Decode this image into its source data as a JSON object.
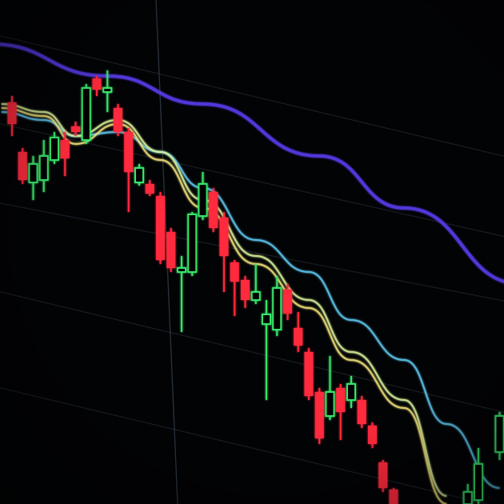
{
  "chart_data": {
    "type": "candlestick",
    "title": "",
    "xlabel": "",
    "ylabel": "",
    "ylim": [
      0,
      63
    ],
    "grid": true,
    "colors": {
      "up": "#39e36a",
      "down": "#ff2b3c",
      "background": "#020305",
      "grid": "#2a3440"
    },
    "candles": [
      {
        "i": 0,
        "o": 50.2,
        "h": 51.0,
        "l": 46.0,
        "c": 47.5
      },
      {
        "i": 1,
        "o": 44.0,
        "h": 44.5,
        "l": 40.0,
        "c": 40.5
      },
      {
        "i": 2,
        "o": 40.2,
        "h": 43.5,
        "l": 38.0,
        "c": 42.5
      },
      {
        "i": 3,
        "o": 40.5,
        "h": 45.5,
        "l": 39.0,
        "c": 43.5
      },
      {
        "i": 4,
        "o": 43.0,
        "h": 46.5,
        "l": 42.5,
        "c": 45.8
      },
      {
        "i": 5,
        "o": 45.5,
        "h": 46.5,
        "l": 41.0,
        "c": 43.2
      },
      {
        "i": 6,
        "o": 47.2,
        "h": 47.8,
        "l": 46.0,
        "c": 46.5
      },
      {
        "i": 7,
        "o": 45.5,
        "h": 52.5,
        "l": 45.0,
        "c": 52.0
      },
      {
        "i": 8,
        "o": 53.2,
        "h": 53.5,
        "l": 51.0,
        "c": 51.8
      },
      {
        "i": 9,
        "o": 51.5,
        "h": 54.2,
        "l": 49.0,
        "c": 52.0
      },
      {
        "i": 10,
        "o": 49.5,
        "h": 50.0,
        "l": 46.0,
        "c": 46.5
      },
      {
        "i": 11,
        "o": 46.5,
        "h": 47.0,
        "l": 36.5,
        "c": 41.5
      },
      {
        "i": 12,
        "o": 40.2,
        "h": 42.5,
        "l": 39.8,
        "c": 42.0
      },
      {
        "i": 13,
        "o": 40.0,
        "h": 40.5,
        "l": 38.5,
        "c": 38.8
      },
      {
        "i": 14,
        "o": 38.5,
        "h": 39.0,
        "l": 30.0,
        "c": 30.5
      },
      {
        "i": 15,
        "o": 34.0,
        "h": 34.5,
        "l": 29.0,
        "c": 29.5
      },
      {
        "i": 16,
        "o": 29.0,
        "h": 31.0,
        "l": 21.5,
        "c": 29.5
      },
      {
        "i": 17,
        "o": 29.0,
        "h": 36.5,
        "l": 28.5,
        "c": 36.2
      },
      {
        "i": 18,
        "o": 36.0,
        "h": 41.5,
        "l": 35.5,
        "c": 40.0
      },
      {
        "i": 19,
        "o": 39.0,
        "h": 39.5,
        "l": 34.0,
        "c": 34.5
      },
      {
        "i": 20,
        "o": 35.8,
        "h": 36.5,
        "l": 26.5,
        "c": 31.0
      },
      {
        "i": 21,
        "o": 30.2,
        "h": 30.5,
        "l": 23.5,
        "c": 27.8
      },
      {
        "i": 22,
        "o": 28.0,
        "h": 28.5,
        "l": 24.5,
        "c": 25.5
      },
      {
        "i": 23,
        "o": 25.5,
        "h": 30.0,
        "l": 25.0,
        "c": 26.5
      },
      {
        "i": 24,
        "o": 22.5,
        "h": 25.5,
        "l": 13.0,
        "c": 23.7
      },
      {
        "i": 25,
        "o": 21.8,
        "h": 28.5,
        "l": 21.0,
        "c": 27.0
      },
      {
        "i": 26,
        "o": 26.8,
        "h": 27.5,
        "l": 23.0,
        "c": 23.8
      },
      {
        "i": 27,
        "o": 22.0,
        "h": 24.0,
        "l": 19.0,
        "c": 19.8
      },
      {
        "i": 28,
        "o": 19.0,
        "h": 19.5,
        "l": 13.0,
        "c": 13.5
      },
      {
        "i": 29,
        "o": 14.0,
        "h": 14.5,
        "l": 7.5,
        "c": 8.2
      },
      {
        "i": 30,
        "o": 11.0,
        "h": 18.5,
        "l": 10.5,
        "c": 14.0
      },
      {
        "i": 31,
        "o": 14.5,
        "h": 15.0,
        "l": 8.0,
        "c": 11.5
      },
      {
        "i": 32,
        "o": 13.0,
        "h": 16.0,
        "l": 12.0,
        "c": 15.0
      },
      {
        "i": 33,
        "o": 13.0,
        "h": 13.5,
        "l": 9.5,
        "c": 10.0
      },
      {
        "i": 34,
        "o": 9.8,
        "h": 10.2,
        "l": 7.0,
        "c": 7.5
      },
      {
        "i": 35,
        "o": 5.2,
        "h": 5.5,
        "l": 1.5,
        "c": 2.0
      },
      {
        "i": 36,
        "o": 1.8,
        "h": 2.0,
        "l": 0.0,
        "c": 0.0
      },
      {
        "i": 43,
        "o": 0.0,
        "h": 2.5,
        "l": 0.0,
        "c": 1.5
      },
      {
        "i": 44,
        "o": 0.5,
        "h": 7.0,
        "l": 0.0,
        "c": 5.0
      },
      {
        "i": 46,
        "o": 6.5,
        "h": 11.5,
        "l": 5.5,
        "c": 11.0
      }
    ],
    "lines": [
      {
        "color": "#5a3cf0",
        "points": [
          [
            -2,
            57.5
          ],
          [
            9,
            53.5
          ],
          [
            18,
            50
          ],
          [
            29,
            43.5
          ],
          [
            37,
            37
          ],
          [
            48,
            27.5
          ]
        ]
      },
      {
        "color": "#5fc8f0",
        "points": [
          [
            -1,
            49
          ],
          [
            3,
            48
          ],
          [
            6,
            46
          ],
          [
            10,
            46.5
          ],
          [
            14,
            44
          ],
          [
            18,
            39.5
          ],
          [
            23,
            33
          ],
          [
            28,
            29
          ],
          [
            32,
            23
          ],
          [
            37,
            18
          ],
          [
            41,
            10
          ],
          [
            46,
            2
          ]
        ]
      },
      {
        "color": "#d9f29a",
        "points": [
          [
            -1,
            50
          ],
          [
            3,
            49
          ],
          [
            6,
            46
          ],
          [
            10,
            48
          ],
          [
            14,
            44
          ],
          [
            18,
            38
          ],
          [
            23,
            31
          ],
          [
            28,
            25.5
          ],
          [
            32,
            19
          ],
          [
            37,
            13
          ],
          [
            41,
            1
          ]
        ]
      },
      {
        "color": "#f2e27a",
        "points": [
          [
            -1,
            49.5
          ],
          [
            3,
            48.5
          ],
          [
            6,
            45
          ],
          [
            10,
            47.5
          ],
          [
            14,
            43
          ],
          [
            18,
            37
          ],
          [
            23,
            30
          ],
          [
            28,
            24.5
          ],
          [
            32,
            18
          ],
          [
            37,
            12
          ],
          [
            41,
            0
          ]
        ]
      }
    ]
  }
}
